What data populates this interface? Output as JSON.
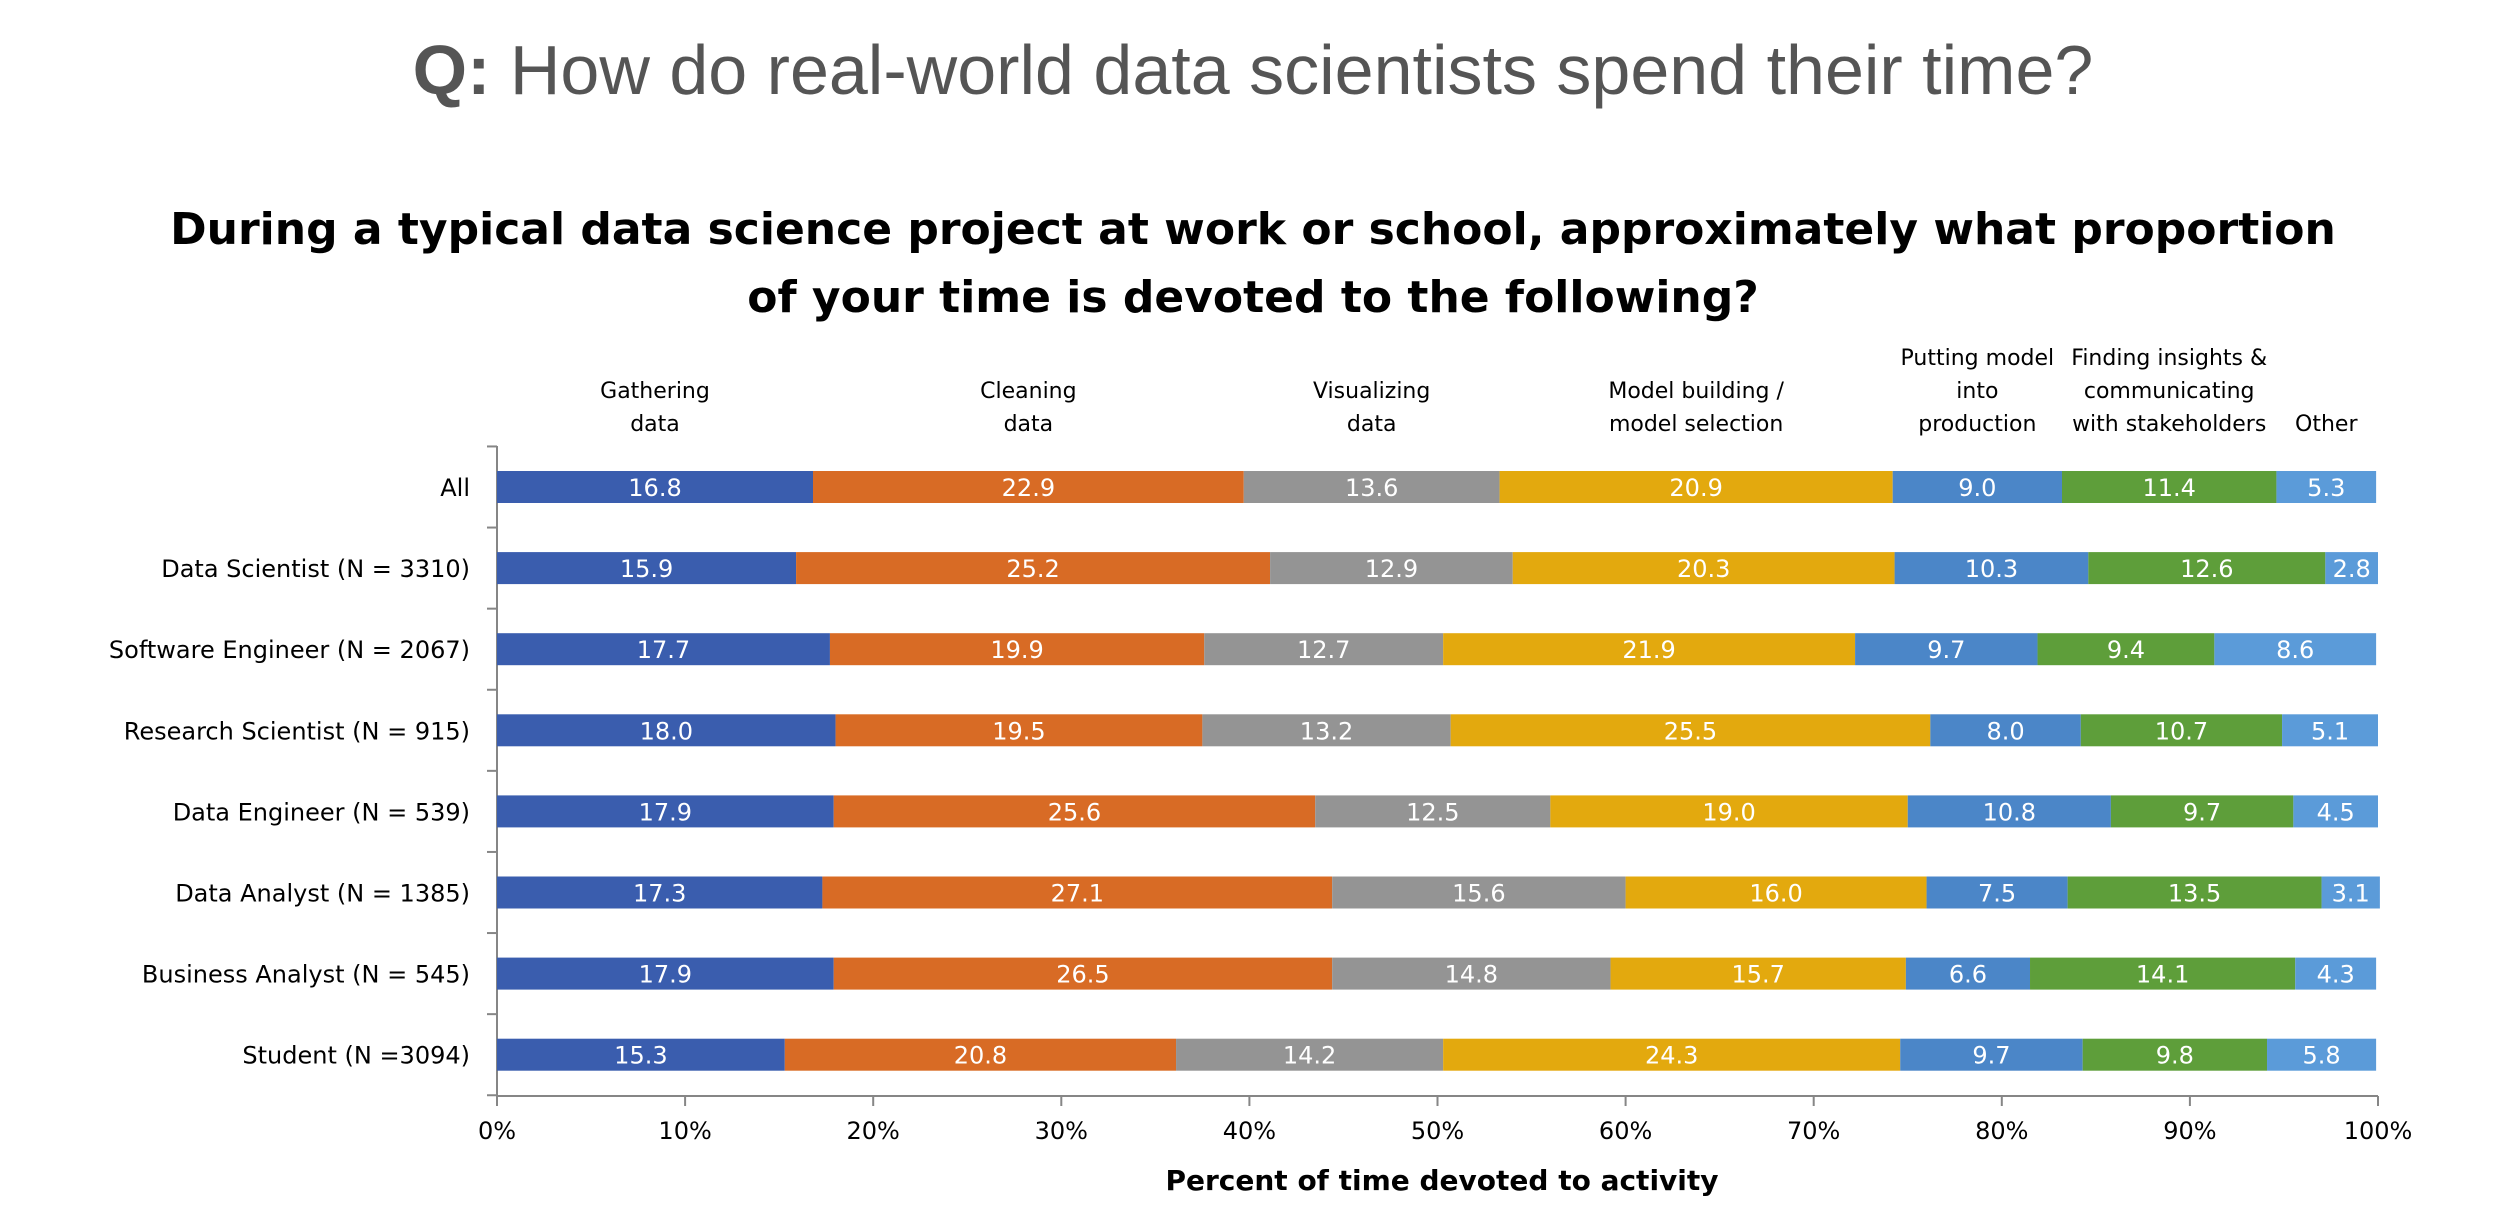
{
  "slide": {
    "title_prefix": "Q:",
    "title_text": "How do real-world data scientists spend their time?"
  },
  "chart_data": {
    "type": "bar",
    "orientation": "horizontal",
    "stacked": true,
    "title_lines": [
      "During a typical data science project at work or school, approximately what proportion",
      "of your time is devoted to the following?"
    ],
    "xlabel": "Percent of time devoted to activity",
    "ylabel": "",
    "xlim": [
      0,
      100
    ],
    "x_ticks": [
      "0%",
      "10%",
      "20%",
      "30%",
      "40%",
      "50%",
      "60%",
      "70%",
      "80%",
      "90%",
      "100%"
    ],
    "legend_placement": "top (labels above each segment column)",
    "categories": [
      "All",
      "Data Scientist (N = 3310)",
      "Software Engineer (N = 2067)",
      "Research Scientist (N = 915)",
      "Data Engineer (N = 539)",
      "Data Analyst (N = 1385)",
      "Business Analyst (N = 545)",
      "Student (N =3094)"
    ],
    "series": [
      {
        "name": [
          "Gathering",
          "data"
        ],
        "color": "#3A5DAE",
        "values": [
          16.8,
          15.9,
          17.7,
          18.0,
          17.9,
          17.3,
          17.9,
          15.3
        ]
      },
      {
        "name": [
          "Cleaning",
          "data"
        ],
        "color": "#D86B25",
        "values": [
          22.9,
          25.2,
          19.9,
          19.5,
          25.6,
          27.1,
          26.5,
          20.8
        ]
      },
      {
        "name": [
          "Visualizing",
          "data"
        ],
        "color": "#949494",
        "values": [
          13.6,
          12.9,
          12.7,
          13.2,
          12.5,
          15.6,
          14.8,
          14.2
        ]
      },
      {
        "name": [
          "Model building /",
          "model selection"
        ],
        "color": "#E3A90E",
        "values": [
          20.9,
          20.3,
          21.9,
          25.5,
          19.0,
          16.0,
          15.7,
          24.3
        ]
      },
      {
        "name": [
          "Putting model",
          "into",
          "production"
        ],
        "color": "#4B86C8",
        "values": [
          9.0,
          10.3,
          9.7,
          8.0,
          10.8,
          7.5,
          6.6,
          9.7
        ]
      },
      {
        "name": [
          "Finding insights &",
          "communicating",
          "with stakeholders"
        ],
        "color": "#5E9E3A",
        "values": [
          11.4,
          12.6,
          9.4,
          10.7,
          9.7,
          13.5,
          14.1,
          9.8
        ]
      },
      {
        "name": [
          "Other"
        ],
        "color": "#5B9BD9",
        "values": [
          5.3,
          2.8,
          8.6,
          5.1,
          4.5,
          3.1,
          4.3,
          5.8
        ]
      }
    ]
  }
}
